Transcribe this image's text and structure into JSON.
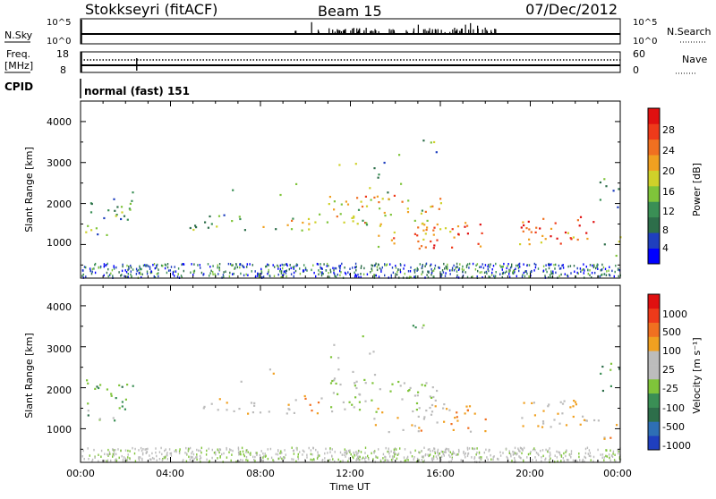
{
  "header": {
    "station": "Stokkseyri (fitACF)",
    "beam": "Beam 15",
    "date": "07/Dec/2012"
  },
  "nsky_panel": {
    "left_label": "N.Sky",
    "right_label": "N.Search",
    "left_ticks": [
      "10^5",
      "10^0"
    ],
    "right_ticks": [
      "10^5",
      "10^0"
    ]
  },
  "freq_panel": {
    "left_label_line1": "Freq.",
    "left_label_line2": "[MHz]",
    "left_ticks": [
      "18",
      "8"
    ],
    "right_ticks": [
      "60",
      "0"
    ],
    "right_label": "Nave"
  },
  "cpid_panel": {
    "label": "CPID",
    "mode": "normal (fast) 151"
  },
  "x_axis": {
    "ticks": [
      "00:00",
      "04:00",
      "08:00",
      "12:00",
      "16:00",
      "20:00",
      "00:00"
    ],
    "label": "Time UT"
  },
  "power_panel": {
    "ylabel": "Slant Range [km]",
    "yticks": [
      "4000",
      "3000",
      "2000",
      "1000"
    ],
    "cbar_label": "Power [dB]",
    "cbar_ticks": [
      "28",
      "24",
      "20",
      "16",
      "12",
      "8",
      "4"
    ],
    "cbar_colors": [
      "#0000ff",
      "#1f3fbf",
      "#2d6e4a",
      "#3a8f55",
      "#7fc43a",
      "#cfd12a",
      "#f0a020",
      "#f07020",
      "#ee3a1a",
      "#e01010"
    ]
  },
  "velocity_panel": {
    "ylabel": "Slant Range [km]",
    "yticks": [
      "4000",
      "3000",
      "2000",
      "1000"
    ],
    "cbar_label": "Velocity [m s⁻¹]",
    "cbar_ticks": [
      "1000",
      "500",
      "100",
      "25",
      "-25",
      "-100",
      "-500",
      "-1000"
    ],
    "cbar_colors": [
      "#1f3fbf",
      "#2e6fb5",
      "#2d6e4a",
      "#3a8f55",
      "#7fc43a",
      "#bcbcbc",
      "#bcbcbc",
      "#f0a020",
      "#f07020",
      "#ee3a1a",
      "#e01010"
    ]
  },
  "chart_data": [
    {
      "type": "heatmap",
      "title": "Power [dB]",
      "xlabel": "Time UT",
      "ylabel": "Slant Range [km]",
      "xlim_hours": [
        0,
        24
      ],
      "ylim_km": [
        180,
        4500
      ],
      "color_range": [
        0,
        30
      ]
    },
    {
      "type": "heatmap",
      "title": "Velocity [m s⁻¹]",
      "xlabel": "Time UT",
      "ylabel": "Slant Range [km]",
      "xlim_hours": [
        0,
        24
      ],
      "ylim_km": [
        180,
        4500
      ],
      "color_range": [
        -1000,
        1000
      ]
    }
  ]
}
